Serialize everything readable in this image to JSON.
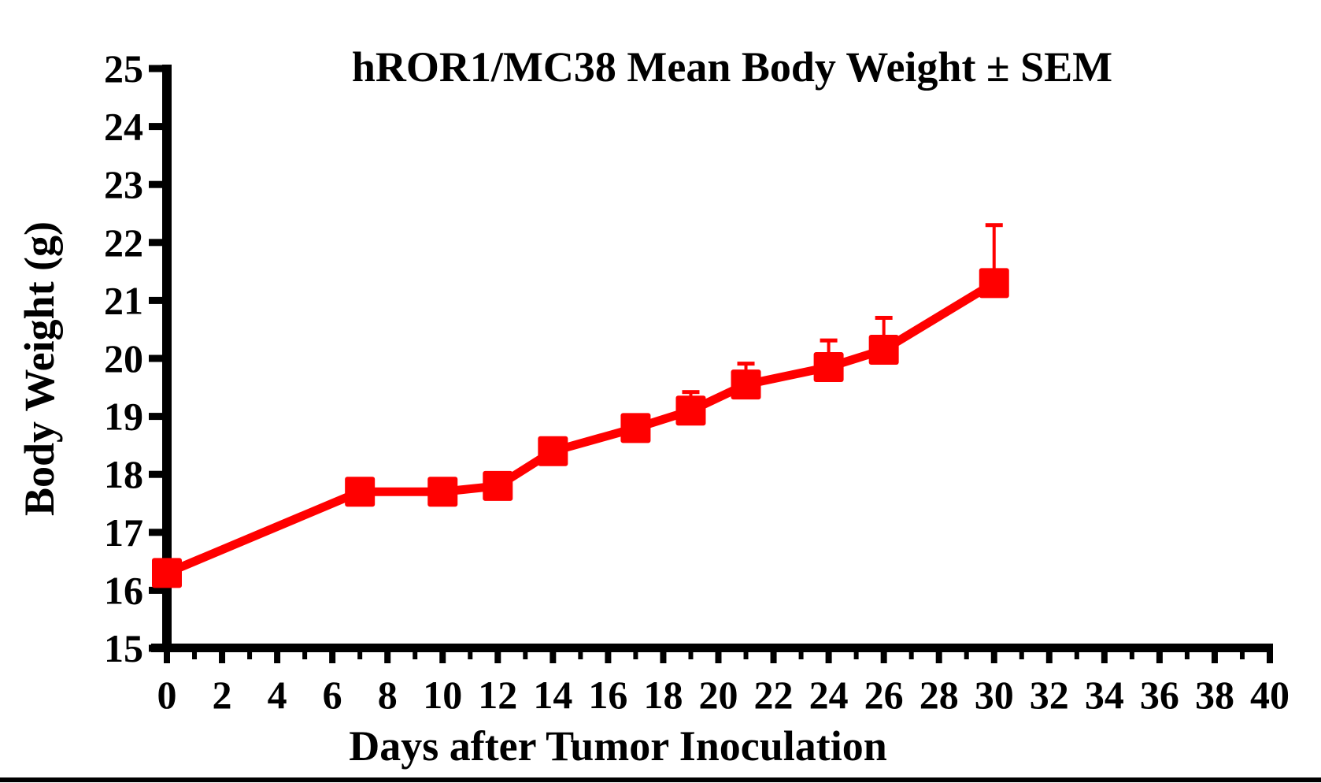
{
  "colors": {
    "series": "#FF0000",
    "axis": "#000000",
    "background": "#FFFFFF"
  },
  "chart_data": {
    "type": "line",
    "title": "hROR1/MC38 Mean Body Weight ± SEM",
    "xlabel": "Days after Tumor Inoculation",
    "ylabel": "Body Weight (g)",
    "xlim": [
      0,
      40
    ],
    "ylim": [
      15,
      25
    ],
    "x_ticks": [
      0,
      2,
      4,
      6,
      8,
      10,
      12,
      14,
      16,
      18,
      20,
      22,
      24,
      26,
      28,
      30,
      32,
      34,
      36,
      38,
      40
    ],
    "x_major_tick_step": 2,
    "x_minor_tick_step": 1,
    "y_ticks": [
      15,
      16,
      17,
      18,
      19,
      20,
      21,
      22,
      23,
      24,
      25
    ],
    "grid": false,
    "legend": "none",
    "series": [
      {
        "name": "hROR1/MC38 mean body weight",
        "marker": "filled-square",
        "color": "#FF0000",
        "x": [
          0,
          7,
          10,
          12,
          14,
          17,
          19,
          21,
          24,
          26,
          30
        ],
        "y": [
          16.3,
          17.7,
          17.7,
          17.8,
          18.4,
          18.8,
          19.1,
          19.55,
          19.85,
          20.15,
          21.3
        ],
        "sem_upper": [
          null,
          null,
          null,
          null,
          null,
          null,
          0.32,
          0.36,
          0.46,
          0.55,
          1.0
        ]
      }
    ]
  }
}
